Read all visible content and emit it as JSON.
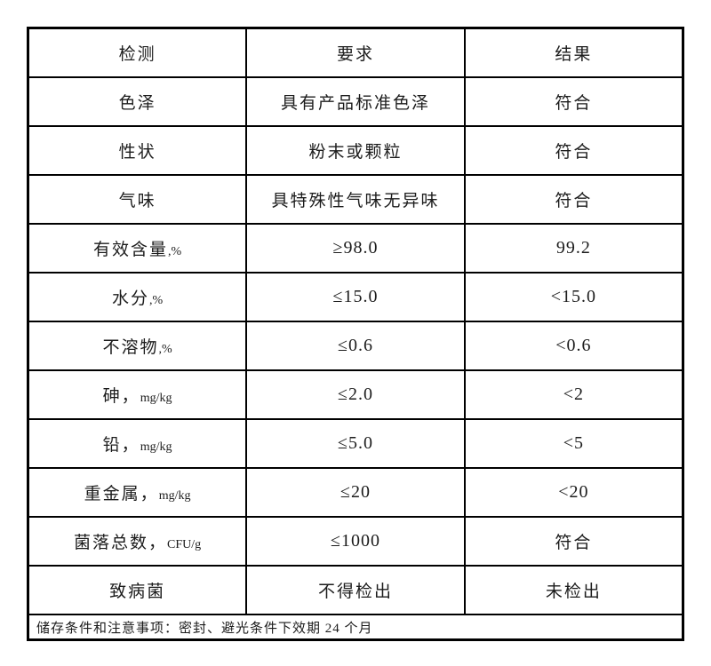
{
  "table": {
    "columns": [
      "检测",
      "要求",
      "结果"
    ],
    "rows": [
      {
        "item": "色泽",
        "unit": "",
        "requirement": "具有产品标准色泽",
        "result": "符合"
      },
      {
        "item": "性状",
        "unit": "",
        "requirement": "粉末或颗粒",
        "result": "符合"
      },
      {
        "item": "气味",
        "unit": "",
        "requirement": "具特殊性气味无异味",
        "result": "符合"
      },
      {
        "item": "有效含量",
        "unit": ",%",
        "requirement": "≥98.0",
        "result": "99.2"
      },
      {
        "item": "水分",
        "unit": ",%",
        "requirement": "≤15.0",
        "result": "<15.0"
      },
      {
        "item": "不溶物",
        "unit": ",%",
        "requirement": "≤0.6",
        "result": "<0.6"
      },
      {
        "item": "砷，",
        "unit": "mg/kg",
        "requirement": "≤2.0",
        "result": "<2"
      },
      {
        "item": "铅，",
        "unit": "mg/kg",
        "requirement": "≤5.0",
        "result": "<5"
      },
      {
        "item": "重金属，",
        "unit": "mg/kg",
        "requirement": "≤20",
        "result": "<20"
      },
      {
        "item": "菌落总数，",
        "unit": "CFU/g",
        "requirement": "≤1000",
        "result": "符合"
      },
      {
        "item": "致病菌",
        "unit": "",
        "requirement": "不得检出",
        "result": "未检出"
      }
    ],
    "footer_note": "储存条件和注意事项：密封、避光条件下效期 24 个月"
  },
  "colors": {
    "background": "#ffffff",
    "border": "#000000",
    "text": "#1c1c1c"
  }
}
